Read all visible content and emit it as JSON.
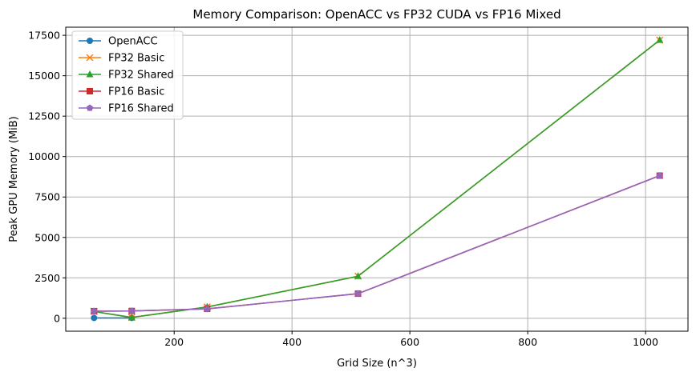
{
  "chart_data": {
    "type": "line",
    "title": "Memory Comparison: OpenACC vs FP32 CUDA vs FP16 Mixed",
    "xlabel": "Grid Size (n^3)",
    "ylabel": "Peak GPU Memory (MiB)",
    "x": [
      64,
      128,
      256,
      512,
      1024
    ],
    "xlim": [
      16,
      1072
    ],
    "ylim": [
      -800,
      18000
    ],
    "xticks": [
      200,
      400,
      600,
      800,
      1000
    ],
    "yticks": [
      0,
      2500,
      5000,
      7500,
      10000,
      12500,
      15000,
      17500
    ],
    "grid": true,
    "legend_position": "top-left",
    "series": [
      {
        "name": "OpenACC",
        "color": "#1f77b4",
        "marker": "circle",
        "values": [
          20,
          20,
          null,
          null,
          null
        ]
      },
      {
        "name": "FP32 Basic",
        "color": "#ff7f0e",
        "marker": "x",
        "values": [
          420,
          50,
          700,
          2600,
          17200
        ]
      },
      {
        "name": "FP32 Shared",
        "color": "#2ca02c",
        "marker": "triangle",
        "values": [
          420,
          50,
          700,
          2600,
          17200
        ]
      },
      {
        "name": "FP16 Basic",
        "color": "#d62728",
        "marker": "square",
        "values": [
          440,
          450,
          580,
          1520,
          8820
        ]
      },
      {
        "name": "FP16 Shared",
        "color": "#9467bd",
        "marker": "pentagon",
        "values": [
          440,
          450,
          580,
          1520,
          8820
        ]
      }
    ]
  }
}
